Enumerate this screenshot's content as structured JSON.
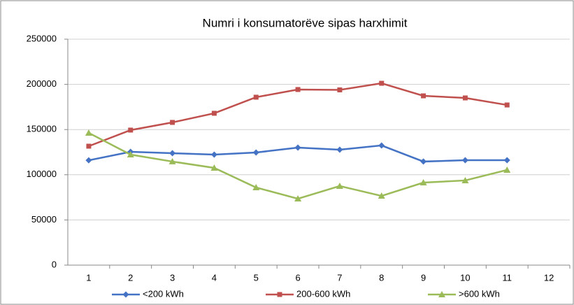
{
  "chart_data": {
    "type": "line",
    "title": "Numri i konsumatorëve sipas harxhimit",
    "categories": [
      "1",
      "2",
      "3",
      "4",
      "5",
      "6",
      "7",
      "8",
      "9",
      "10",
      "11",
      "12"
    ],
    "series": [
      {
        "name": "<200 kWh",
        "color": "#4472c4",
        "marker": "diamond",
        "values": [
          116000,
          125400,
          123800,
          122300,
          124600,
          130000,
          127700,
          132400,
          114600,
          116100,
          116100,
          null
        ]
      },
      {
        "name": "200-600 kWh",
        "color": "#c0504d",
        "marker": "square",
        "values": [
          131600,
          149400,
          157900,
          168000,
          185800,
          194300,
          193900,
          201200,
          187300,
          185000,
          177200,
          null
        ]
      },
      {
        "name": ">600 kWh",
        "color": "#9bbb59",
        "marker": "triangle",
        "values": [
          146300,
          122300,
          114600,
          107600,
          85900,
          73500,
          87500,
          76600,
          91300,
          93700,
          105300,
          null
        ]
      }
    ],
    "ylim": [
      0,
      250000
    ],
    "yticks": [
      0,
      50000,
      100000,
      150000,
      200000,
      250000
    ],
    "grid": true,
    "legend": "bottom"
  }
}
